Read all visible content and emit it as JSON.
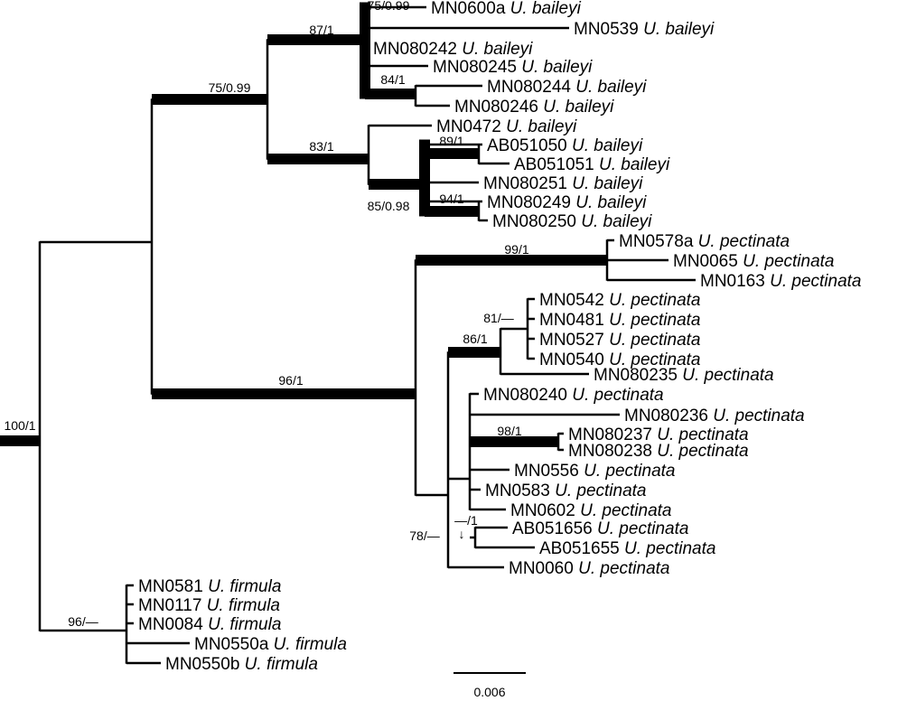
{
  "taxa": [
    {
      "id": "MN0600a",
      "species": "U. baileyi"
    },
    {
      "id": "MN0539",
      "species": "U. baileyi"
    },
    {
      "id": "MN080242",
      "species": "U. baileyi"
    },
    {
      "id": "MN080245",
      "species": "U. baileyi"
    },
    {
      "id": "MN080244",
      "species": "U. baileyi"
    },
    {
      "id": "MN080246",
      "species": "U. baileyi"
    },
    {
      "id": "MN0472",
      "species": "U. baileyi"
    },
    {
      "id": "AB051050",
      "species": "U. baileyi"
    },
    {
      "id": "AB051051",
      "species": "U. baileyi"
    },
    {
      "id": "MN080251",
      "species": "U. baileyi"
    },
    {
      "id": "MN080249",
      "species": "U. baileyi"
    },
    {
      "id": "MN080250",
      "species": "U. baileyi"
    },
    {
      "id": "MN0578a",
      "species": "U. pectinata"
    },
    {
      "id": "MN0065",
      "species": "U. pectinata"
    },
    {
      "id": "MN0163",
      "species": "U. pectinata"
    },
    {
      "id": "MN0542",
      "species": "U. pectinata"
    },
    {
      "id": "MN0481",
      "species": "U. pectinata"
    },
    {
      "id": "MN0527",
      "species": "U. pectinata"
    },
    {
      "id": "MN0540",
      "species": "U. pectinata"
    },
    {
      "id": "MN080235",
      "species": "U. pectinata"
    },
    {
      "id": "MN080240",
      "species": "U. pectinata"
    },
    {
      "id": "MN080236",
      "species": "U. pectinata"
    },
    {
      "id": "MN080237",
      "species": "U. pectinata"
    },
    {
      "id": "MN080238",
      "species": "U. pectinata"
    },
    {
      "id": "MN0556",
      "species": "U. pectinata"
    },
    {
      "id": "MN0583",
      "species": "U. pectinata"
    },
    {
      "id": "MN0602",
      "species": "U. pectinata"
    },
    {
      "id": "AB051656",
      "species": "U. pectinata"
    },
    {
      "id": "AB051655",
      "species": "U. pectinata"
    },
    {
      "id": "MN0060",
      "species": "U. pectinata"
    },
    {
      "id": "MN0581",
      "species": "U. firmula"
    },
    {
      "id": "MN0117",
      "species": "U. firmula"
    },
    {
      "id": "MN0084",
      "species": "U. firmula"
    },
    {
      "id": "MN0550a",
      "species": "U. firmula"
    },
    {
      "id": "MN0550b",
      "species": "U. firmula"
    }
  ],
  "support": {
    "root": "100/1",
    "baileyi": "75/0.99",
    "baileyi_a": "87/1",
    "baileyi_a1": "75/0.99",
    "baileyi_a2": "84/1",
    "baileyi_b": "83/1",
    "baileyi_b1": "85/0.98",
    "baileyi_b2": "89/1",
    "baileyi_b3": "94/1",
    "pectinata": "96/1",
    "pectinata_a": "99/1",
    "pectinata_b": "78/—",
    "pectinata_b1": "86/1",
    "pectinata_b2": "81/—",
    "pectinata_b3": "98/1",
    "pectinata_b4": "—/1",
    "firmula": "96/—"
  },
  "scale_bar": {
    "label": "0.006"
  }
}
